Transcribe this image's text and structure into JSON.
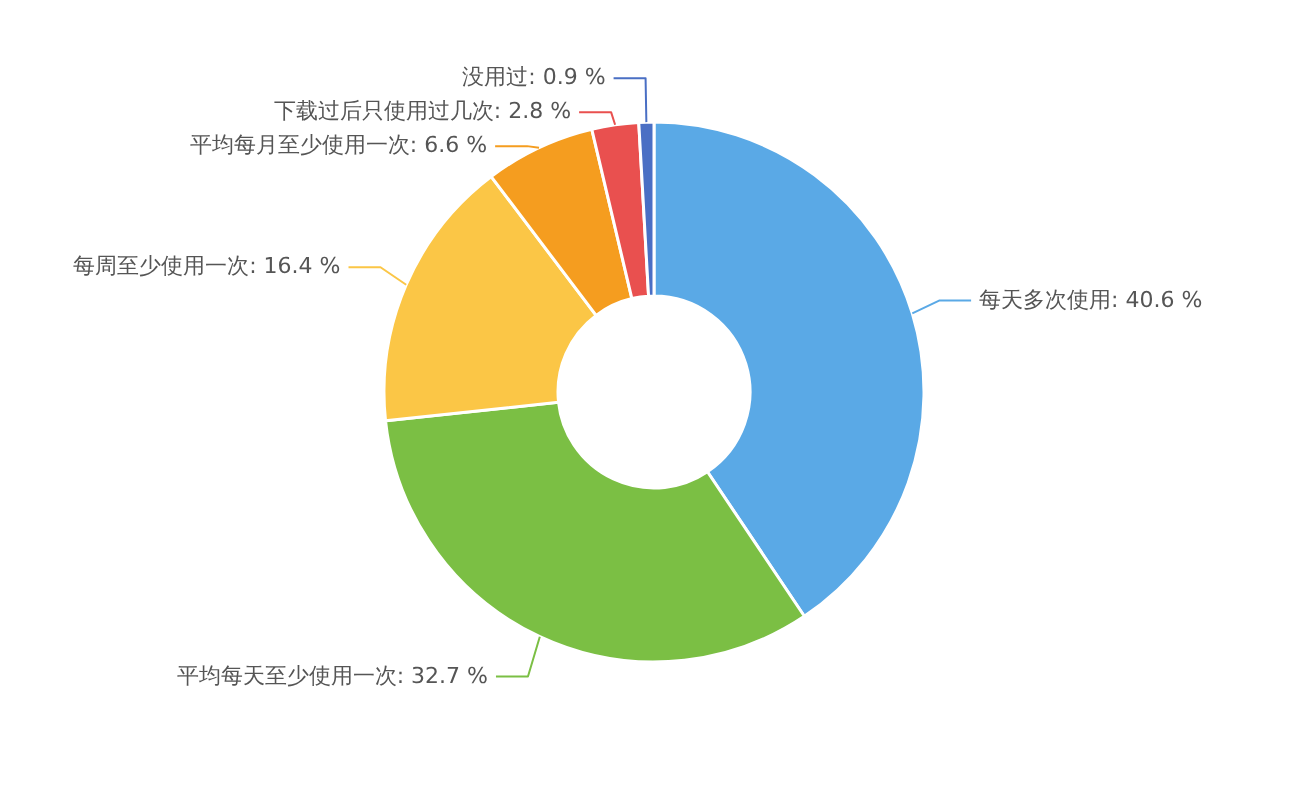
{
  "chart_data": {
    "type": "donut",
    "categories": [
      "每天多次使用",
      "平均每天至少使用一次",
      "每周至少使用一次",
      "平均每月至少使用一次",
      "下载过后只使用过几次",
      "没用过"
    ],
    "values": [
      40.6,
      32.7,
      16.4,
      6.6,
      2.8,
      0.9
    ],
    "colors": [
      "#5aa9e6",
      "#7bbf44",
      "#fbc646",
      "#f59d1f",
      "#e9504f",
      "#4a6fc4"
    ],
    "value_labels": [
      "40.6 %",
      "32.7 %",
      "16.4 %",
      "6.6 %",
      "2.8 %",
      "0.9 %"
    ]
  }
}
